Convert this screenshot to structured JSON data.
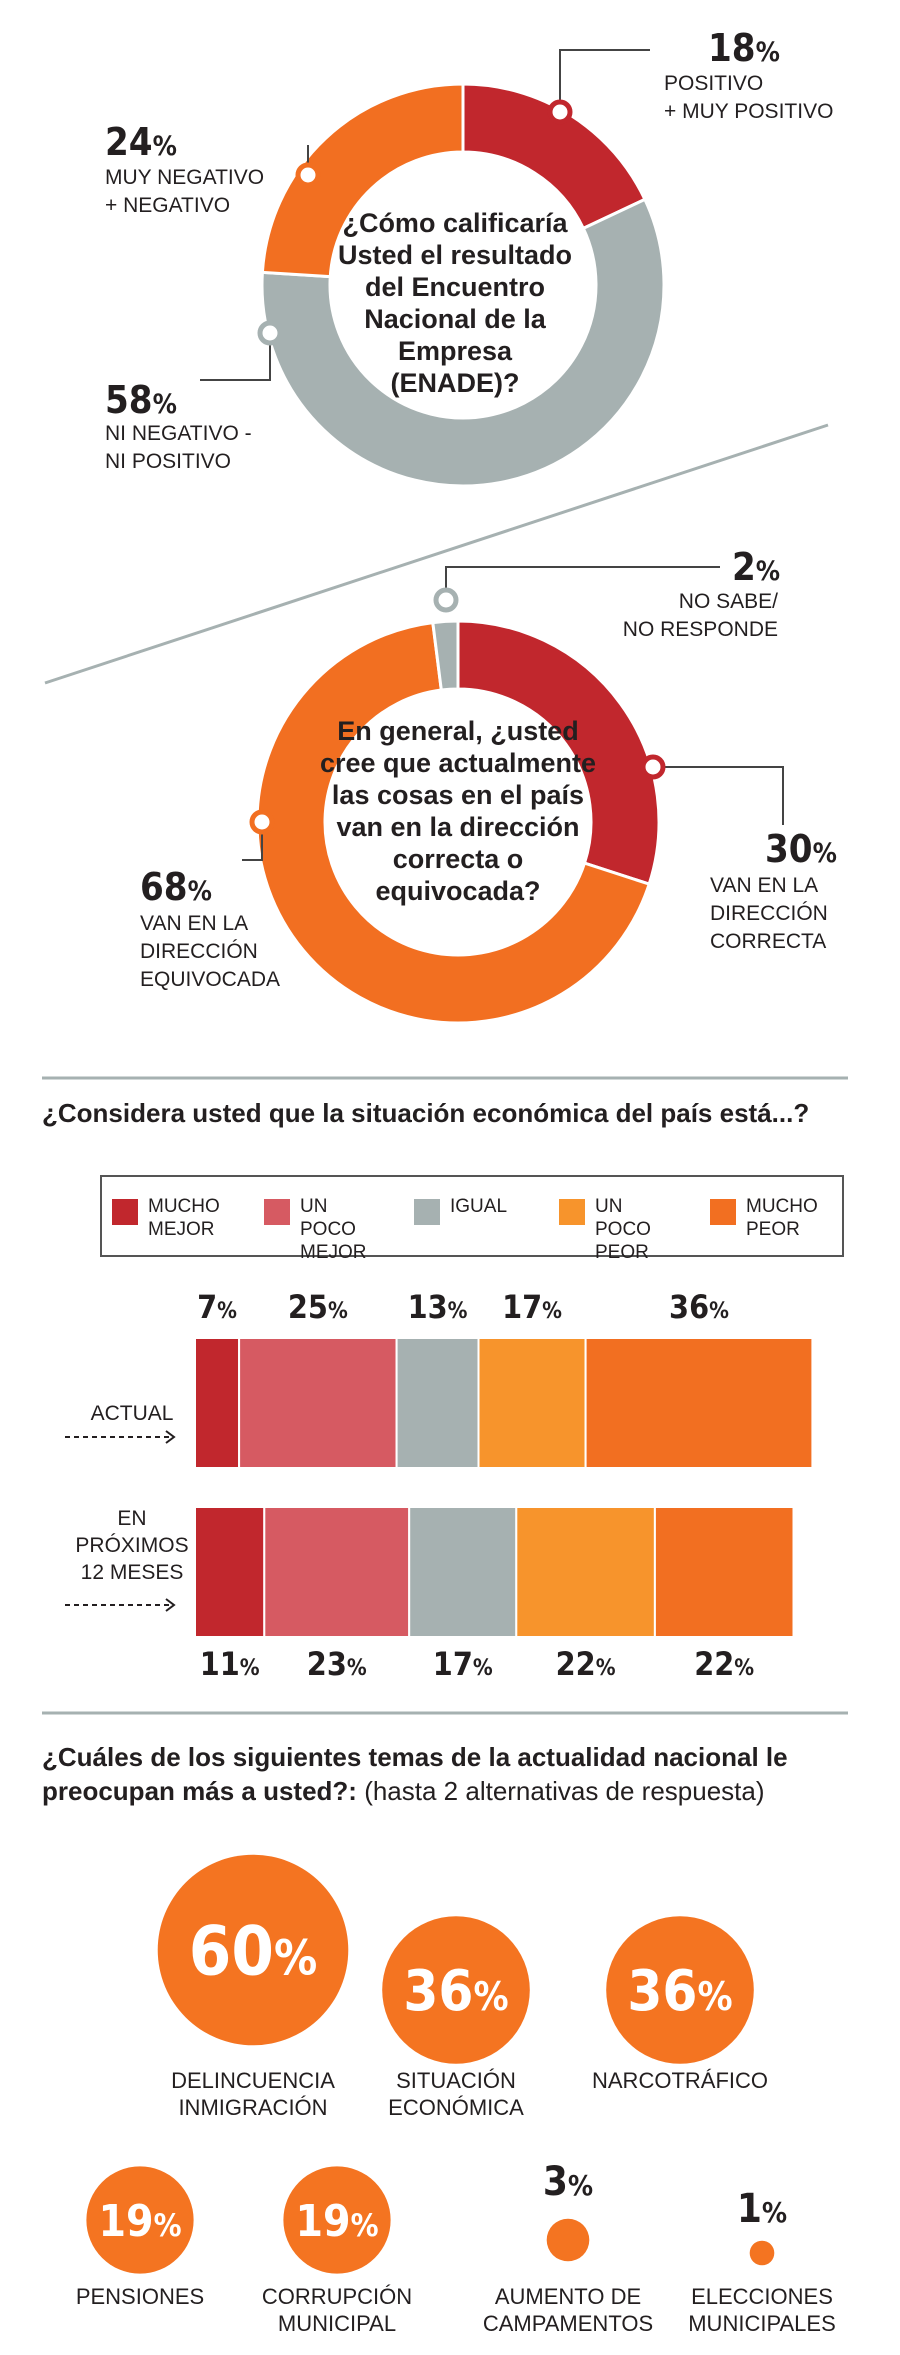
{
  "colors": {
    "red": "#c1272d",
    "salmon": "#d65a62",
    "gray": "#a6b1b1",
    "light_orange": "#f7942c",
    "orange": "#f26f21",
    "bubble_orange": "#f47421"
  },
  "chart_data": [
    {
      "type": "pie",
      "question": "¿Cómo calificaría Usted el resultado del Encuentro Nacional de la Empresa (ENADE)?",
      "slices": [
        {
          "label": "POSITIVO + MUY POSITIVO",
          "label_lines": [
            "POSITIVO",
            "+ MUY POSITIVO"
          ],
          "value": 18,
          "display": "18",
          "color": "#c1272d"
        },
        {
          "label": "NI NEGATIVO - NI POSITIVO",
          "label_lines": [
            "NI NEGATIVO -",
            "NI POSITIVO"
          ],
          "value": 58,
          "display": "58",
          "color": "#a6b1b1"
        },
        {
          "label": "MUY NEGATIVO + NEGATIVO",
          "label_lines": [
            "MUY NEGATIVO",
            "+ NEGATIVO"
          ],
          "value": 24,
          "display": "24",
          "color": "#f26f21"
        }
      ]
    },
    {
      "type": "pie",
      "question": "En general, ¿usted cree que actualmente las cosas en el país van en la dirección correcta o equivocada?",
      "slices": [
        {
          "label": "VAN EN LA DIRECCIÓN CORRECTA",
          "label_lines": [
            "VAN EN LA",
            "DIRECCIÓN",
            "CORRECTA"
          ],
          "value": 30,
          "display": "30",
          "color": "#c1272d"
        },
        {
          "label": "VAN EN LA DIRECCIÓN EQUIVOCADA",
          "label_lines": [
            "VAN EN LA",
            "DIRECCIÓN",
            "EQUIVOCADA"
          ],
          "value": 68,
          "display": "68",
          "color": "#f26f21"
        },
        {
          "label": "NO SABE/ NO RESPONDE",
          "label_lines": [
            "NO SABE/",
            "NO RESPONDE"
          ],
          "value": 2,
          "display": "2",
          "color": "#a6b1b1"
        }
      ]
    },
    {
      "type": "bar",
      "orientation": "horizontal-stacked",
      "title": "¿Considera usted que la situación económica del país está...?",
      "legend_position": "top",
      "series_names": [
        {
          "name": "MUCHO MEJOR",
          "lines": [
            "MUCHO",
            "MEJOR"
          ],
          "color": "#c1272d"
        },
        {
          "name": "UN POCO MEJOR",
          "lines": [
            "UN POCO",
            "MEJOR"
          ],
          "color": "#d65a62"
        },
        {
          "name": "IGUAL",
          "lines": [
            "IGUAL"
          ],
          "color": "#a6b1b1"
        },
        {
          "name": "UN POCO PEOR",
          "lines": [
            "UN POCO",
            "PEOR"
          ],
          "color": "#f7942c"
        },
        {
          "name": "MUCHO PEOR",
          "lines": [
            "MUCHO",
            "PEOR"
          ],
          "color": "#f26f21"
        }
      ],
      "categories": [
        {
          "label": "ACTUAL",
          "lines": [
            "ACTUAL"
          ],
          "values": [
            7,
            25,
            13,
            17,
            36
          ]
        },
        {
          "label": "EN PRÓXIMOS 12 MESES",
          "lines": [
            "EN",
            "PRÓXIMOS",
            "12 MESES"
          ],
          "values": [
            11,
            23,
            17,
            22,
            22
          ]
        }
      ]
    },
    {
      "type": "bubble",
      "title_bold_lines": [
        "¿Cuáles de los siguientes temas de la actualidad nacional le",
        "preocupan más a usted?:"
      ],
      "title_note": "(hasta 2 alternativas de respuesta)",
      "items": [
        {
          "lines": [
            "DELINCUENCIA",
            "INMIGRACIÓN"
          ],
          "value": 60
        },
        {
          "lines": [
            "SITUACIÓN",
            "ECONÓMICA"
          ],
          "value": 36
        },
        {
          "lines": [
            "NARCOTRÁFICO"
          ],
          "value": 36
        },
        {
          "lines": [
            "PENSIONES"
          ],
          "value": 19
        },
        {
          "lines": [
            "CORRUPCIÓN",
            "MUNICIPAL"
          ],
          "value": 19
        },
        {
          "lines": [
            "AUMENTO DE",
            "CAMPAMENTOS"
          ],
          "value": 3
        },
        {
          "lines": [
            "ELECCIONES",
            "MUNICIPALES"
          ],
          "value": 1
        }
      ]
    }
  ],
  "pct_symbol": "%",
  "bar_section_title": "¿Considera usted que la situación económica del país está...?"
}
